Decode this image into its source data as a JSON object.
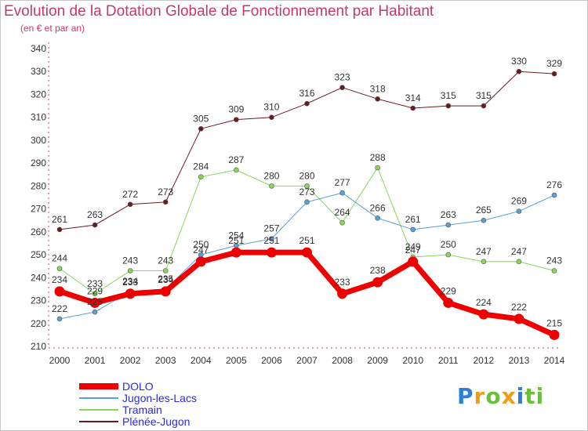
{
  "title": "Evolution de la Dotation Globale de Fonctionnement par Habitant",
  "subtitle": "(en € et par an)",
  "logo_text": "Proxiti",
  "chart_data": {
    "type": "line",
    "x": [
      "2000",
      "2001",
      "2002",
      "2003",
      "2004",
      "2005",
      "2006",
      "2007",
      "2008",
      "2009",
      "2010",
      "2011",
      "2012",
      "2013",
      "2014"
    ],
    "ylim": [
      210,
      340
    ],
    "yticks": [
      210,
      220,
      230,
      240,
      250,
      260,
      270,
      280,
      290,
      300,
      310,
      320,
      330,
      340
    ],
    "grid": false,
    "legend_position": "bottom-left",
    "series": [
      {
        "name": "Plénée-Jugon",
        "color": "#6b1a1f",
        "width": 1,
        "values": [
          261,
          263,
          272,
          273,
          305,
          309,
          310,
          316,
          323,
          318,
          314,
          315,
          315,
          330,
          329
        ]
      },
      {
        "name": "Tramain",
        "color": "#88d65a",
        "width": 1,
        "values": [
          244,
          233,
          243,
          243,
          284,
          287,
          280,
          280,
          264,
          288,
          249,
          250,
          247,
          247,
          243
        ]
      },
      {
        "name": "Jugon-les-Lacs",
        "color": "#5a9fd6",
        "width": 1,
        "values": [
          222,
          225,
          234,
          235,
          250,
          254,
          257,
          273,
          277,
          266,
          261,
          263,
          265,
          269,
          276
        ]
      },
      {
        "name": "DOLO",
        "color": "#ee0000",
        "width": 7,
        "values": [
          234,
          229,
          233,
          234,
          247,
          251,
          251,
          251,
          233,
          238,
          247,
          229,
          224,
          222,
          215
        ]
      }
    ]
  }
}
